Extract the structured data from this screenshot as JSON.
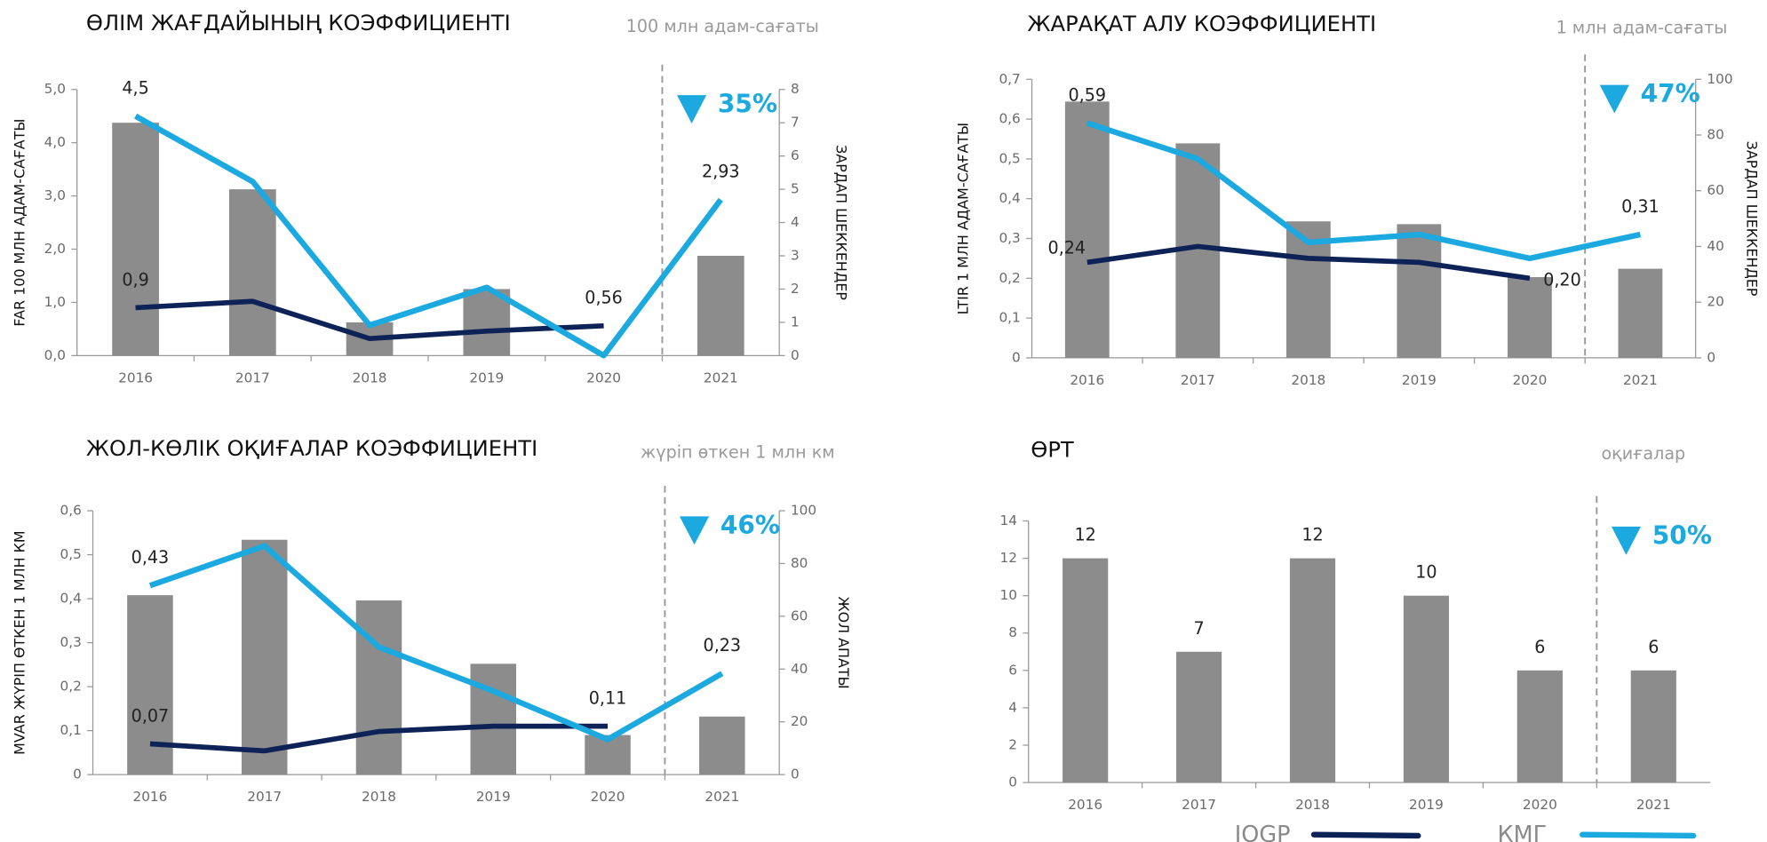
{
  "chart_data": [
    {
      "type": "combo",
      "title": "ӨЛІМ ЖАҒДАЙЫНЫҢ КОЭФФИЦИЕНТІ",
      "subtitle": "100 млн адам-сағаты",
      "y_label": "FAR 100 МЛН АДАМ-САҒАТЫ",
      "y2_label": "ЗАРДАП ШЕККЕНДЕР",
      "annotation": "35%",
      "categories": [
        "2016",
        "2017",
        "2018",
        "2019",
        "2020",
        "2021"
      ],
      "ylim": [
        0,
        5
      ],
      "yticks": [
        {
          "value": 0,
          "label": "0,0"
        },
        {
          "value": 1,
          "label": "1,0"
        },
        {
          "value": 2,
          "label": "2,0"
        },
        {
          "value": 3,
          "label": "3,0"
        },
        {
          "value": 4,
          "label": "4,0"
        },
        {
          "value": 5,
          "label": "5,0"
        }
      ],
      "y2lim": [
        0,
        8
      ],
      "y2ticks": [
        0,
        1,
        2,
        3,
        4,
        5,
        6,
        7,
        8
      ],
      "series": [
        {
          "color": "#8c8c8c",
          "axis": "y2",
          "values": [
            7,
            5,
            1,
            2,
            0,
            3
          ]
        },
        {
          "name": "IOGP",
          "color": "#0d2357",
          "values": [
            0.9,
            1.02,
            0.32,
            0.46,
            0.56,
            null
          ],
          "value_labels": [
            "0,9",
            null,
            null,
            null,
            "0,56",
            null
          ]
        },
        {
          "name": "КМГ",
          "color": "#1ba9e0",
          "values": [
            4.5,
            3.27,
            0.57,
            1.28,
            0,
            2.93
          ],
          "value_labels": [
            "4,5",
            null,
            null,
            null,
            null,
            "2,93"
          ]
        }
      ]
    },
    {
      "type": "combo",
      "title": "ЖАРАҚАТ АЛУ КОЭФФИЦИЕНТІ",
      "subtitle": "1 млн адам-сағаты",
      "y_label": "LTIR 1 МЛН АДАМ-САҒАТЫ",
      "y2_label": "ЗАРДАП ШЕККЕНДЕР",
      "annotation": "47%",
      "categories": [
        "2016",
        "2017",
        "2018",
        "2019",
        "2020",
        "2021"
      ],
      "ylim": [
        0,
        0.7
      ],
      "yticks": [
        0,
        {
          "value": 0.1,
          "label": "0,1"
        },
        {
          "value": 0.2,
          "label": "0,2"
        },
        {
          "value": 0.3,
          "label": "0,3"
        },
        {
          "value": 0.4,
          "label": "0,4"
        },
        {
          "value": 0.5,
          "label": "0,5"
        },
        {
          "value": 0.6,
          "label": "0,6"
        },
        {
          "value": 0.7,
          "label": "0,7"
        }
      ],
      "y2lim": [
        0,
        100
      ],
      "y2ticks": [
        0,
        20,
        40,
        60,
        80,
        100
      ],
      "series": [
        {
          "color": "#8c8c8c",
          "axis": "y2",
          "values": [
            92,
            77,
            49,
            48,
            29,
            32
          ]
        },
        {
          "name": "IOGP",
          "color": "#0d2357",
          "values": [
            0.24,
            0.28,
            0.25,
            0.24,
            0.2,
            null
          ],
          "value_labels": [
            "0,24",
            null,
            null,
            null,
            "0,20",
            null
          ]
        },
        {
          "name": "КМГ",
          "color": "#1ba9e0",
          "values": [
            0.59,
            0.5,
            0.29,
            0.31,
            0.25,
            0.31
          ],
          "value_labels": [
            "0,59",
            null,
            null,
            null,
            null,
            "0,31"
          ]
        }
      ]
    },
    {
      "type": "combo",
      "title": "ЖОЛ-КӨЛІК ОҚИҒАЛАР КОЭФФИЦИЕНТІ",
      "subtitle": "жүріп өткен 1 млн км",
      "y_label": "MVAR ЖҮРІП ӨТКЕН 1 МЛН КМ",
      "y2_label": "ЖОЛ АПАТЫ",
      "annotation": "46%",
      "categories": [
        "2016",
        "2017",
        "2018",
        "2019",
        "2020",
        "2021"
      ],
      "ylim": [
        0,
        0.6
      ],
      "yticks": [
        0,
        {
          "value": 0.1,
          "label": "0,1"
        },
        {
          "value": 0.2,
          "label": "0,2"
        },
        {
          "value": 0.3,
          "label": "0,3"
        },
        {
          "value": 0.4,
          "label": "0,4"
        },
        {
          "value": 0.5,
          "label": "0,5"
        },
        {
          "value": 0.6,
          "label": "0,6"
        }
      ],
      "y2lim": [
        0,
        100
      ],
      "y2ticks": [
        0,
        20,
        40,
        60,
        80,
        100
      ],
      "series": [
        {
          "color": "#8c8c8c",
          "axis": "y2",
          "values": [
            68,
            89,
            66,
            42,
            15,
            22
          ]
        },
        {
          "name": "IOGP",
          "color": "#0d2357",
          "values": [
            0.07,
            0.054,
            0.098,
            0.11,
            0.11,
            null
          ],
          "value_labels": [
            "0,07",
            null,
            null,
            null,
            "0,11",
            null
          ]
        },
        {
          "name": "КМГ",
          "color": "#1ba9e0",
          "values": [
            0.43,
            0.52,
            0.29,
            0.19,
            0.08,
            0.23
          ],
          "value_labels": [
            "0,43",
            null,
            null,
            null,
            null,
            "0,23"
          ]
        }
      ]
    },
    {
      "type": "bar",
      "title": "ӨРТ",
      "subtitle": "оқиғалар",
      "annotation": "50%",
      "categories": [
        "2016",
        "2017",
        "2018",
        "2019",
        "2020",
        "2021"
      ],
      "ylim": [
        0,
        14
      ],
      "yticks": [
        0,
        2,
        4,
        6,
        8,
        10,
        12,
        14
      ],
      "color": "#8c8c8c",
      "values": [
        12,
        7,
        12,
        10,
        6,
        6
      ]
    }
  ]
}
